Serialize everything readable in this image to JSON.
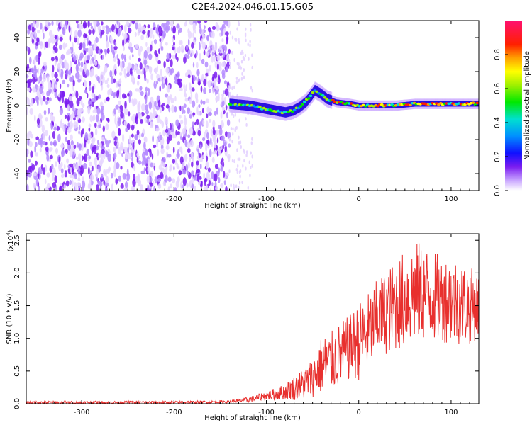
{
  "title": "C2E4.2024.046.01.15.G05",
  "colors": {
    "line": "#e8302e",
    "axis": "#000000",
    "spectrogram_purple": "#7a1cf0",
    "background": "#ffffff"
  },
  "chart_data": [
    {
      "type": "heatmap",
      "title": "C2E4.2024.046.01.15.G05",
      "xlabel": "Height of straight line (km)",
      "ylabel": "Frequency (Hz)",
      "xlim": [
        -360,
        130
      ],
      "ylim": [
        -50,
        50
      ],
      "xticks": [
        -300,
        -200,
        -100,
        0,
        100
      ],
      "yticks": [
        -40,
        -20,
        0,
        20,
        40
      ],
      "noise_region_x": [
        -360,
        -140
      ],
      "signal_trace": {
        "x": [
          -140,
          -120,
          -100,
          -90,
          -80,
          -72,
          -65,
          -58,
          -52,
          -48,
          -42,
          -35,
          -25,
          -10,
          0,
          20,
          40,
          60,
          80,
          100,
          120,
          130
        ],
        "frequency_hz": [
          1,
          0,
          -2,
          -3,
          -4,
          -3,
          -1,
          2,
          6,
          9,
          7,
          4,
          2,
          1,
          0,
          0,
          0,
          1,
          1,
          1,
          1,
          1
        ]
      },
      "colorbar": {
        "label": "Normalized spectral amplitude",
        "range": [
          0,
          1
        ],
        "ticks": [
          "0.0",
          "0.2",
          "0.4",
          "0.6",
          "0.8"
        ]
      }
    },
    {
      "type": "line",
      "xlabel": "Height of straight line (km)",
      "ylabel": "SNR (10 * v/v)",
      "y_multiplier": "(x10^4)",
      "y_multiplier_base": "(x10",
      "y_multiplier_exp": "4",
      "y_multiplier_close": ")",
      "xlim": [
        -360,
        130
      ],
      "ylim": [
        0,
        2.6
      ],
      "xticks": [
        -300,
        -200,
        -100,
        0,
        100
      ],
      "yticks": [
        "0.0",
        "0.5",
        "1.0",
        "1.5",
        "2.0",
        "2.5"
      ],
      "series": [
        {
          "name": "SNR",
          "x": [
            -360,
            -300,
            -200,
            -140,
            -120,
            -100,
            -80,
            -60,
            -50,
            -40,
            -30,
            -20,
            -10,
            0,
            10,
            20,
            30,
            40,
            50,
            60,
            70,
            80,
            90,
            100,
            110,
            120,
            130
          ],
          "mean": [
            0.02,
            0.02,
            0.02,
            0.03,
            0.06,
            0.12,
            0.18,
            0.3,
            0.4,
            0.6,
            0.65,
            0.75,
            0.85,
            0.95,
            1.1,
            1.3,
            1.4,
            1.5,
            1.6,
            1.7,
            1.7,
            1.65,
            1.6,
            1.6,
            1.55,
            1.5,
            1.5
          ],
          "spread": [
            0.02,
            0.02,
            0.02,
            0.02,
            0.04,
            0.07,
            0.12,
            0.25,
            0.3,
            0.45,
            0.45,
            0.5,
            0.5,
            0.6,
            0.6,
            0.6,
            0.65,
            0.7,
            0.75,
            0.8,
            0.75,
            0.7,
            0.65,
            0.7,
            0.65,
            0.6,
            0.5
          ]
        }
      ]
    }
  ]
}
